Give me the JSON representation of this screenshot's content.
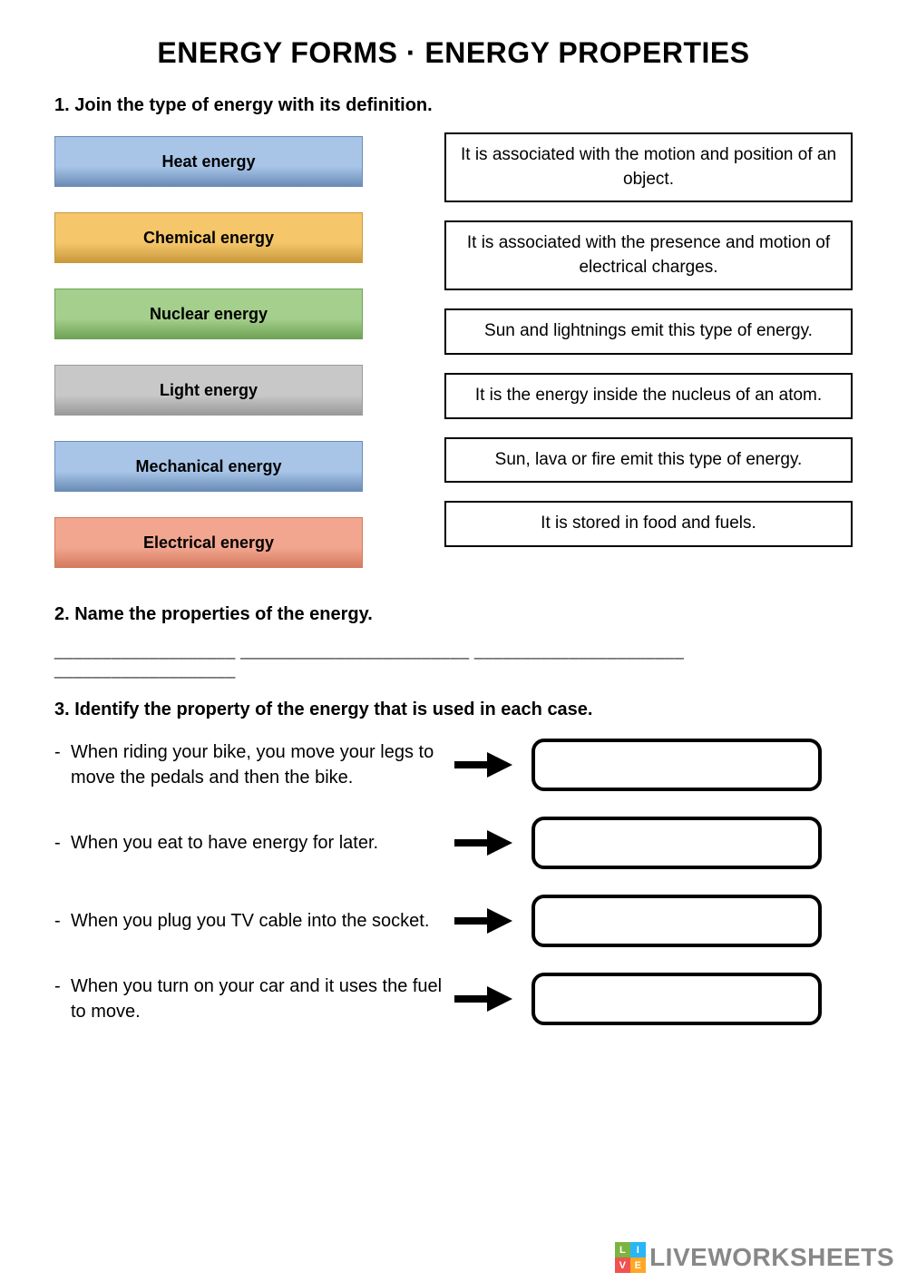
{
  "title": "ENERGY FORMS · ENERGY PROPERTIES",
  "section1": {
    "heading": "1. Join the type of energy with its definition.",
    "energy_types": [
      {
        "label": "Heat energy",
        "bg": "#a8c5e8",
        "border": "#6a8cb5"
      },
      {
        "label": "Chemical energy",
        "bg": "#f5c66a",
        "border": "#c99a3d"
      },
      {
        "label": "Nuclear energy",
        "bg": "#a4cf8c",
        "border": "#6fa355"
      },
      {
        "label": "Light energy",
        "bg": "#c8c8c8",
        "border": "#9a9a9a"
      },
      {
        "label": "Mechanical energy",
        "bg": "#a8c5e8",
        "border": "#6a8cb5"
      },
      {
        "label": "Electrical energy",
        "bg": "#f2a690",
        "border": "#d47a5e"
      }
    ],
    "definitions": [
      "It is associated with the motion and position of an object.",
      "It is associated with the presence and motion of electrical charges.",
      "Sun and lightnings emit this type of energy.",
      "It is the energy inside the nucleus of an atom.",
      "Sun, lava or fire emit this type of energy.",
      "It is stored in food and fuels."
    ]
  },
  "section2": {
    "heading": "2. Name the properties of the energy.",
    "blanks": "___________________   ________________________   ______________________   ___________________"
  },
  "section3": {
    "heading": "3. Identify the property of the energy that is used in each case.",
    "items": [
      "When riding your bike, you move your legs to move the pedals and then the bike.",
      "When you eat to have energy for later.",
      "When you plug you TV cable into the socket.",
      "When you turn on your car and it uses the fuel to move."
    ]
  },
  "watermark": {
    "text": "LIVEWORKSHEETS",
    "badge": [
      "L",
      "I",
      "V",
      "E"
    ],
    "badge_colors": [
      "#7cb342",
      "#29b6f6",
      "#ef5350",
      "#ffa726"
    ]
  }
}
